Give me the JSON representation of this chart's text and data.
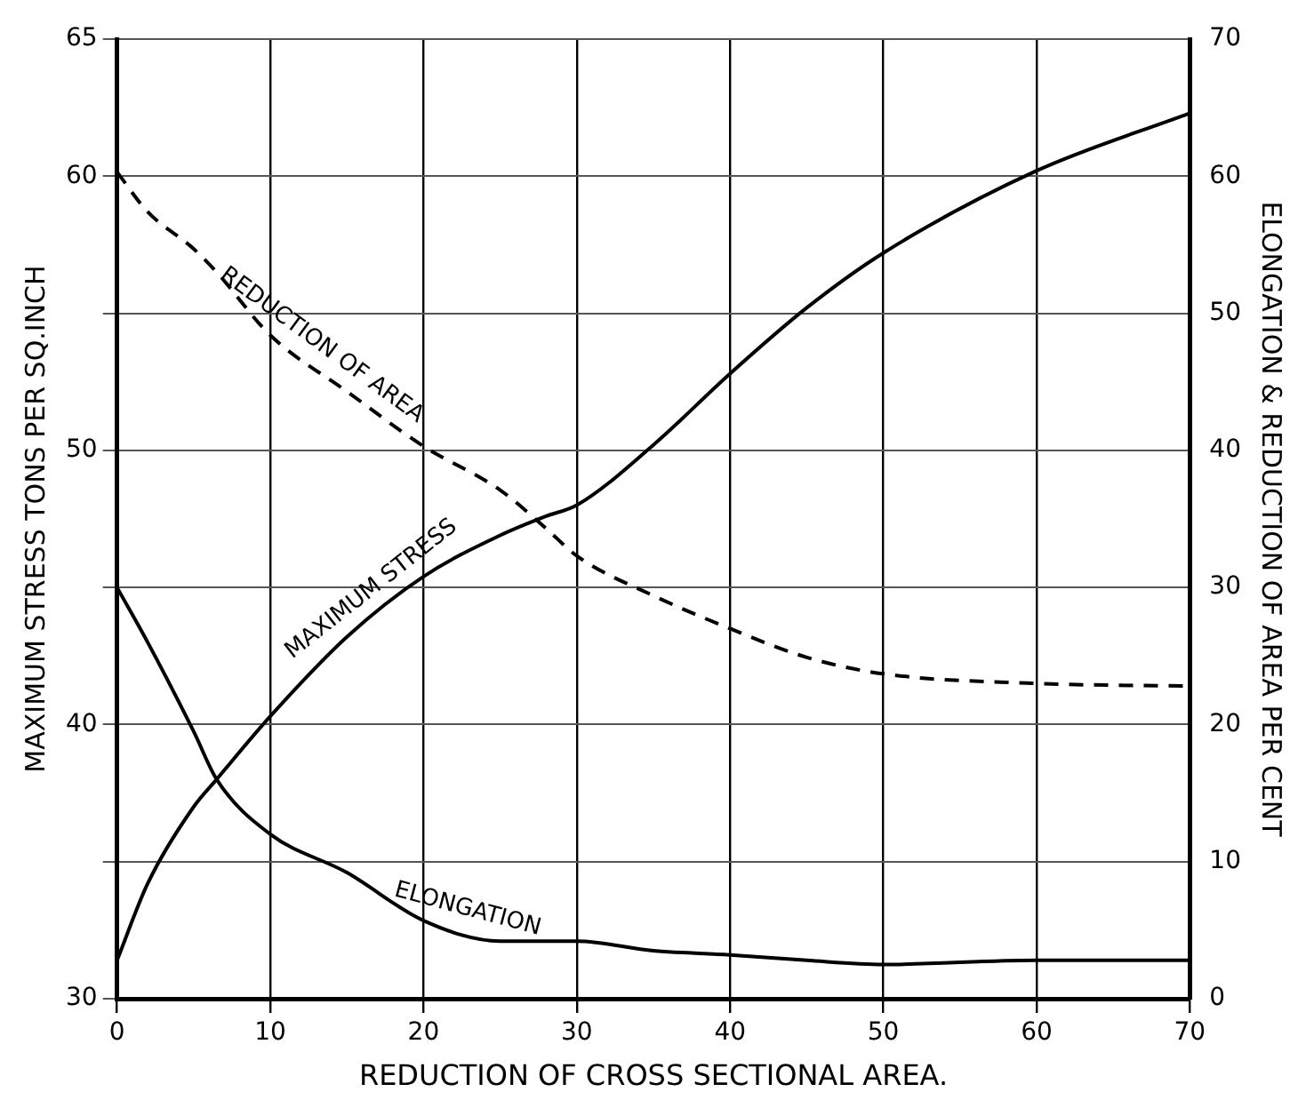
{
  "chart_data": {
    "type": "line",
    "xlabel": "REDUCTION OF CROSS SECTIONAL AREA.",
    "ylabel": "MAXIMUM STRESS TONS PER SQ.INCH",
    "y2label": "ELONGATION & REDUCTION OF AREA PER CENT",
    "x": [
      0,
      2,
      5,
      6.5,
      10,
      15,
      20,
      25,
      28,
      30,
      35,
      40,
      45,
      50,
      60,
      70
    ],
    "series": [
      {
        "name": "MAXIMUM STRESS",
        "color": "#000000",
        "line_style": "solid",
        "values": [
          31.4,
          34.2,
          37,
          38,
          40.3,
          43.2,
          45.4,
          46.9,
          47.6,
          48,
          50.2,
          52.8,
          55.2,
          57.2,
          60.2,
          62.3
        ]
      },
      {
        "name": "ELONGATION",
        "color": "#000000",
        "line_style": "solid",
        "axis": "y2",
        "values": [
          30,
          26,
          19.5,
          16,
          12,
          9.2,
          5.7,
          4.2,
          4.2,
          4.2,
          3.5,
          3.2,
          2.8,
          2.5,
          2.8,
          2.8
        ]
      },
      {
        "name": "REDUCTION OF AREA",
        "color": "#000000",
        "line_style": "dashed",
        "axis": "y2",
        "values": [
          60.3,
          57.4,
          54.7,
          53,
          48.4,
          44.3,
          40.3,
          37.1,
          34.3,
          32.3,
          29.4,
          27,
          24.9,
          23.7,
          23,
          22.8
        ]
      }
    ],
    "xlim": [
      0,
      70
    ],
    "xticks": [
      0,
      10,
      20,
      30,
      40,
      50,
      60,
      70
    ],
    "ylim": [
      30,
      65
    ],
    "yticks": [
      30,
      {
        "value": 35,
        "label": null
      },
      40,
      {
        "value": 45,
        "label": null
      },
      50,
      {
        "value": 55,
        "label": null
      },
      60,
      65
    ],
    "y2lim": [
      0,
      70
    ],
    "y2ticks": [
      0,
      10,
      20,
      30,
      40,
      50,
      60,
      70
    ],
    "grid": true,
    "marker": "none",
    "legend": false
  }
}
